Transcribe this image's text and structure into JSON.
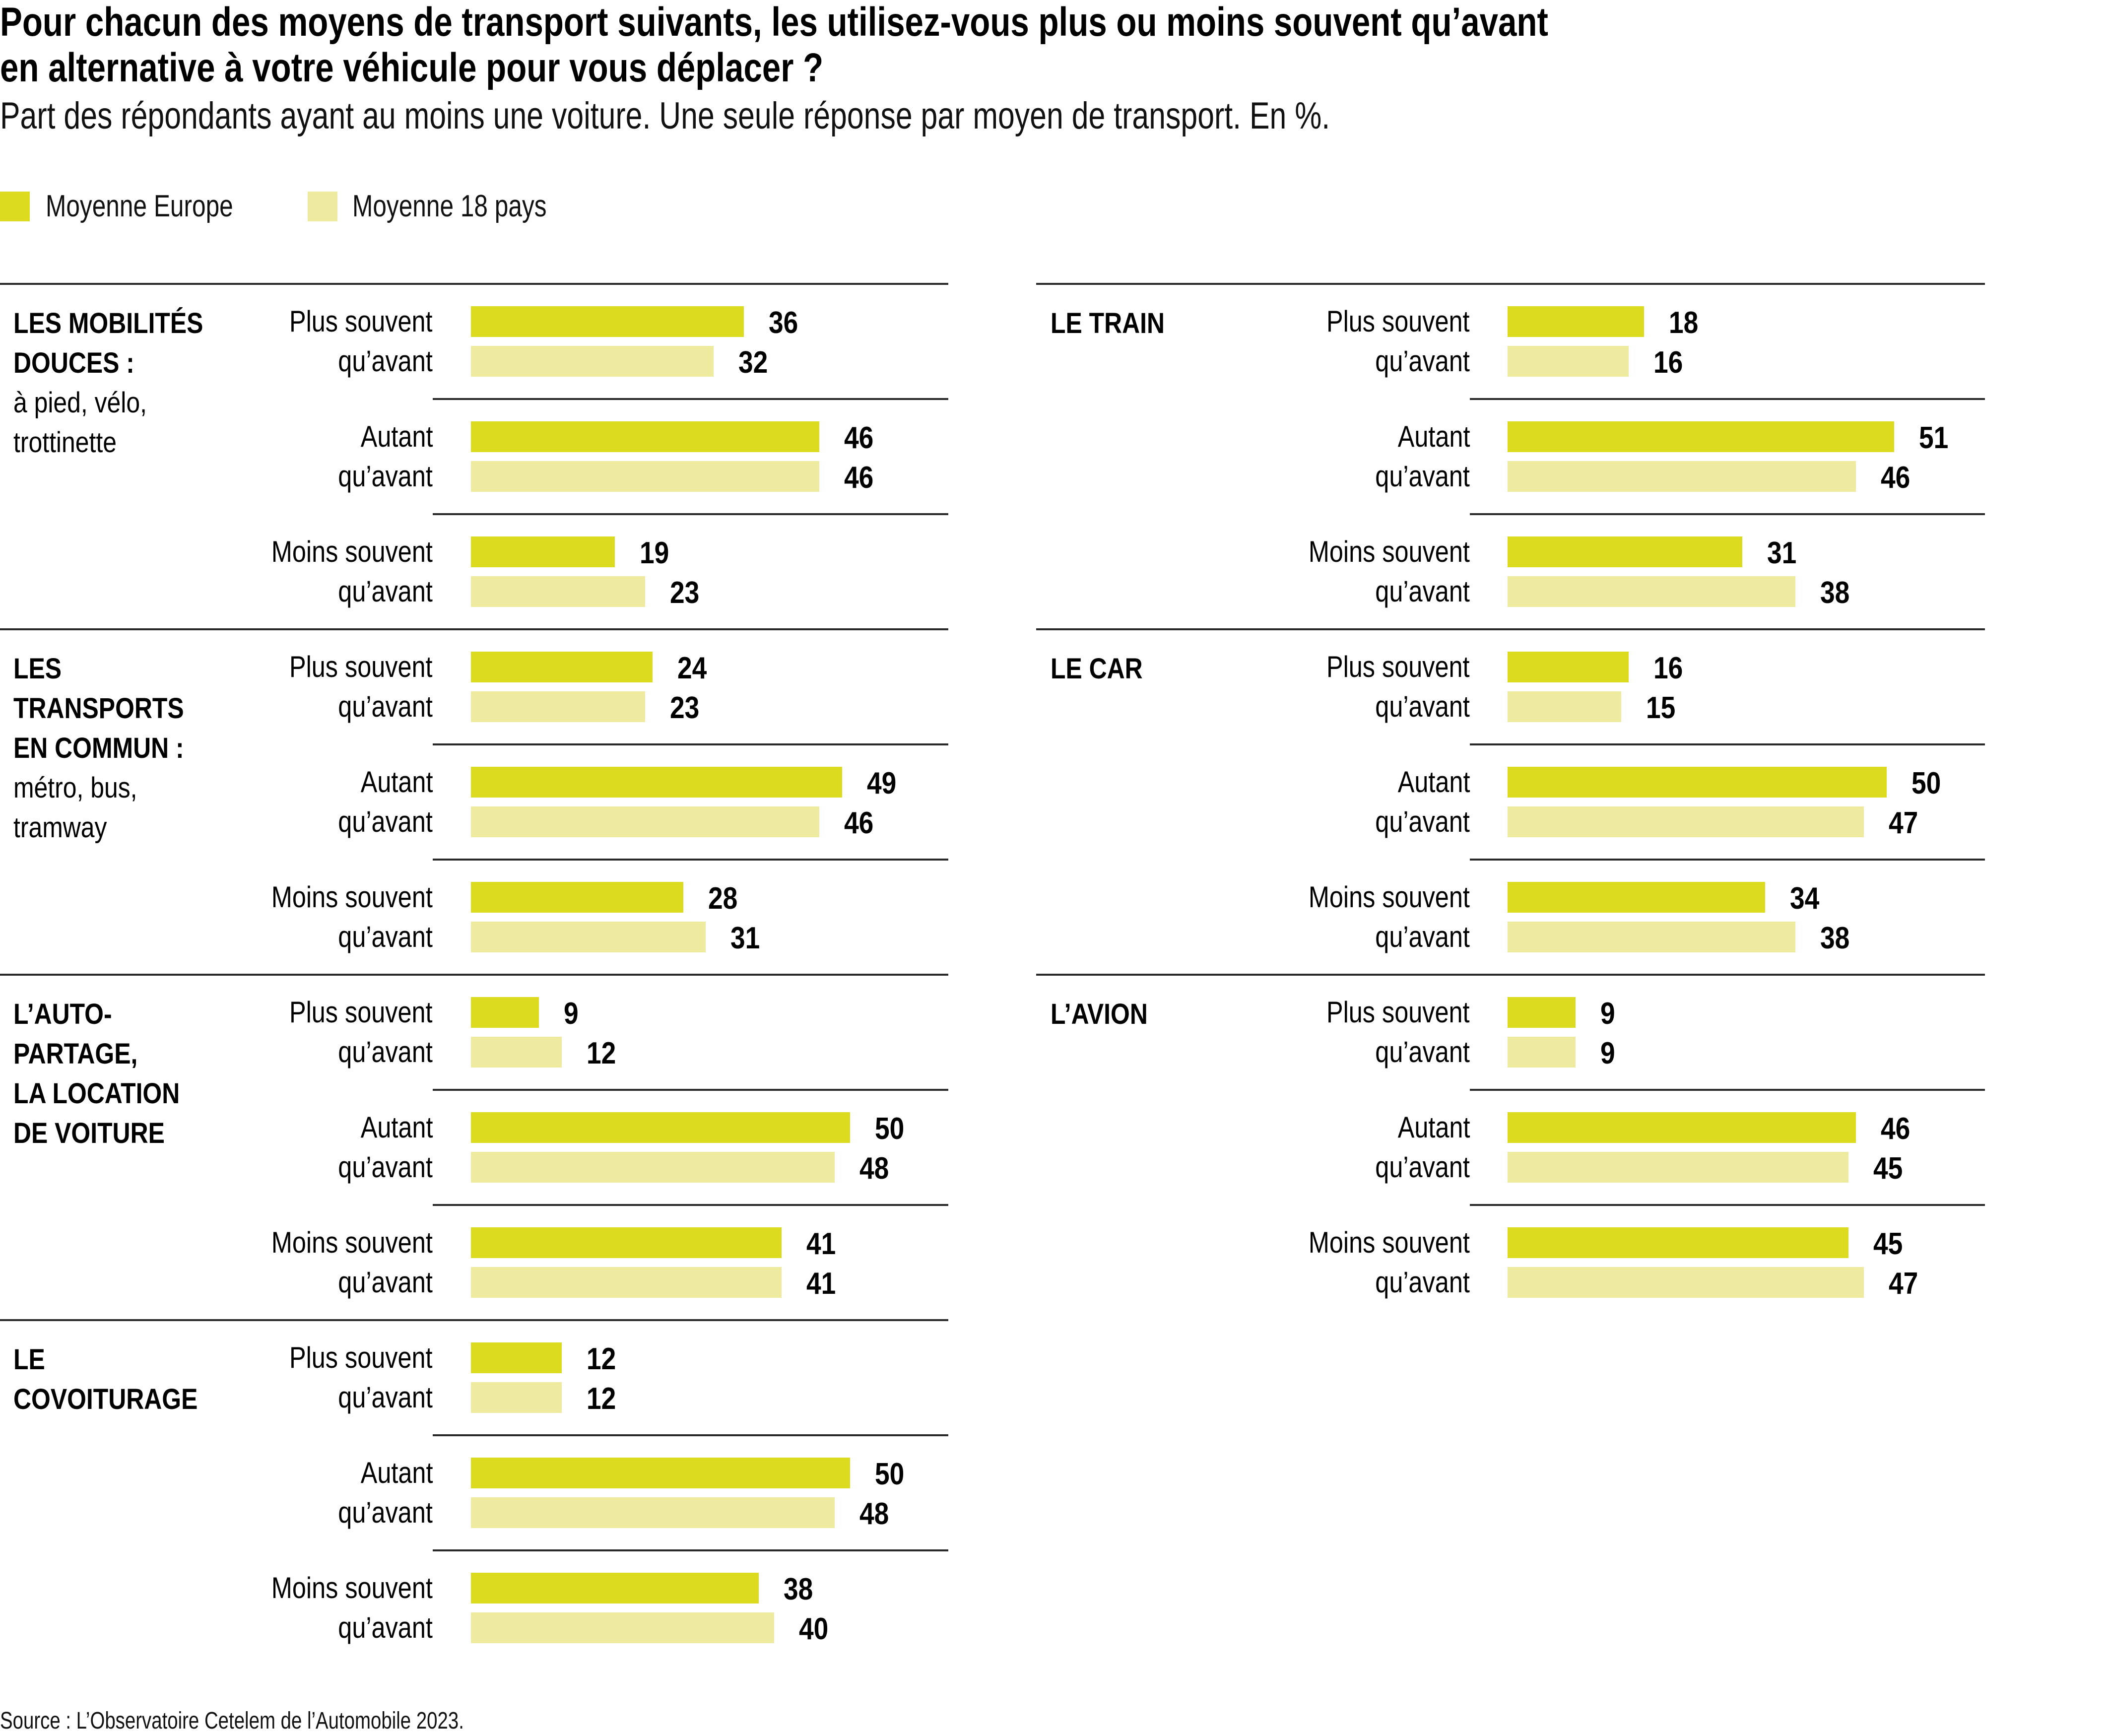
{
  "header": {
    "title_line1": "Pour chacun des moyens de transport suivants, les utilisez-vous plus ou moins souvent qu’avant",
    "title_line2": "en alternative à votre véhicule pour vous déplacer ?",
    "subtitle": "Part des répondants ayant au moins une voiture. Une seule réponse par moyen de transport. En %."
  },
  "legend": [
    {
      "label": "Moyenne Europe",
      "color": "#DCDB1F"
    },
    {
      "label": "Moyenne 18 pays",
      "color": "#EEEBA1"
    }
  ],
  "source": "Source : L’Observatoire Cetelem de l’Automobile 2023.",
  "row_labels": [
    {
      "line1": "Plus souvent",
      "line2": "qu’avant"
    },
    {
      "line1": "Autant",
      "line2": "qu’avant"
    },
    {
      "line1": "Moins souvent",
      "line2": "qu’avant"
    }
  ],
  "chart_data": {
    "type": "bar",
    "orientation": "horizontal",
    "title": "Pour chacun des moyens de transport suivants, les utilisez-vous plus ou moins souvent qu’avant en alternative à votre véhicule pour vous déplacer ?",
    "subtitle": "Part des répondants ayant au moins une voiture. Une seule réponse par moyen de transport. En %.",
    "unit": "%",
    "xlim": [
      0,
      60
    ],
    "grid": false,
    "legend_position": "top-left",
    "series_names": [
      "Moyenne Europe",
      "Moyenne 18 pays"
    ],
    "categories": [
      "Plus souvent qu’avant",
      "Autant qu’avant",
      "Moins souvent qu’avant"
    ],
    "panels": [
      {
        "column": "left",
        "title_bold": [
          "LES MOBILITÉS",
          "DOUCES :"
        ],
        "title_normal": [
          "à pied, vélo,",
          "trottinette"
        ],
        "europe": [
          36,
          46,
          19
        ],
        "pays18": [
          32,
          46,
          23
        ]
      },
      {
        "column": "left",
        "title_bold": [
          "LES",
          "TRANSPORTS",
          "EN COMMUN :"
        ],
        "title_normal": [
          "métro, bus,",
          "tramway"
        ],
        "europe": [
          24,
          49,
          28
        ],
        "pays18": [
          23,
          46,
          31
        ]
      },
      {
        "column": "left",
        "title_bold": [
          "L’AUTO-",
          "PARTAGE,",
          "LA LOCATION",
          "DE VOITURE"
        ],
        "title_normal": [],
        "europe": [
          9,
          50,
          41
        ],
        "pays18": [
          12,
          48,
          41
        ]
      },
      {
        "column": "left",
        "title_bold": [
          "LE",
          "COVOITURAGE"
        ],
        "title_normal": [],
        "europe": [
          12,
          50,
          38
        ],
        "pays18": [
          12,
          48,
          40
        ]
      },
      {
        "column": "right",
        "title_bold": [
          "LE TRAIN"
        ],
        "title_normal": [],
        "europe": [
          18,
          51,
          31
        ],
        "pays18": [
          16,
          46,
          38
        ]
      },
      {
        "column": "right",
        "title_bold": [
          "LE CAR"
        ],
        "title_normal": [],
        "europe": [
          16,
          50,
          34
        ],
        "pays18": [
          15,
          47,
          38
        ]
      },
      {
        "column": "right",
        "title_bold": [
          "L’AVION"
        ],
        "title_normal": [],
        "europe": [
          9,
          46,
          45
        ],
        "pays18": [
          9,
          45,
          47
        ]
      }
    ]
  }
}
